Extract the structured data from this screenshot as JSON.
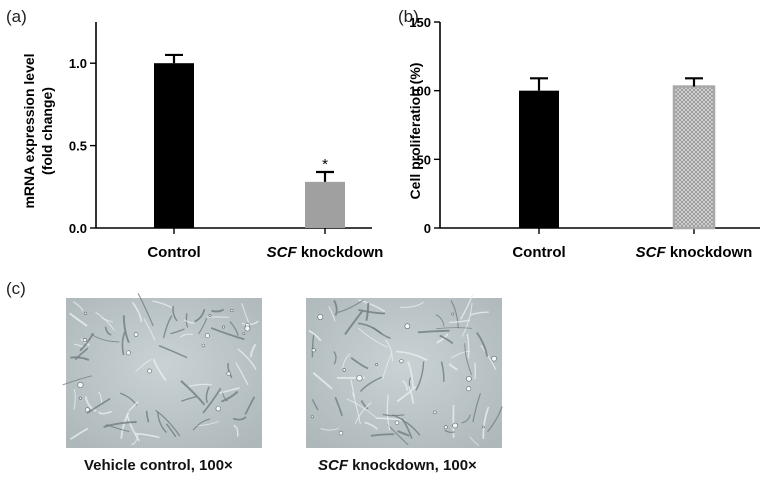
{
  "panels": {
    "a": {
      "label": "(a)"
    },
    "b": {
      "label": "(b)"
    },
    "c": {
      "label": "(c)"
    }
  },
  "chart_data": [
    {
      "type": "bar",
      "panel": "a",
      "categories": [
        "Control",
        "SCF knockdown"
      ],
      "category_italic_prefix": [
        "",
        "SCF"
      ],
      "category_rest": [
        "Control",
        " knockdown"
      ],
      "values": [
        1.0,
        0.28
      ],
      "errors": [
        0.05,
        0.06
      ],
      "significance": [
        "",
        "*"
      ],
      "ylabel_line1": "mRNA expression level",
      "ylabel_line2": "(fold change)",
      "ylim": [
        0,
        1.25
      ],
      "yticks": [
        0.0,
        0.5,
        1.0
      ],
      "ytick_labels": [
        "0.0",
        "0.5",
        "1.0"
      ],
      "bar_colors": [
        "#000000",
        "#a0a0a0"
      ],
      "bar_patterns": [
        "solid",
        "solid"
      ],
      "grid": false
    },
    {
      "type": "bar",
      "panel": "b",
      "categories": [
        "Control",
        "SCF knockdown"
      ],
      "category_italic_prefix": [
        "",
        "SCF"
      ],
      "category_rest": [
        "Control",
        " knockdown"
      ],
      "values": [
        100,
        103
      ],
      "errors": [
        9,
        6
      ],
      "significance": [
        "",
        ""
      ],
      "ylabel_line1": "Cell proliferation (%)",
      "ylim": [
        0,
        150
      ],
      "yticks": [
        0,
        50,
        100,
        150
      ],
      "ytick_labels": [
        "0",
        "50",
        "100",
        "150"
      ],
      "bar_colors": [
        "#000000",
        "#a8a8a8"
      ],
      "bar_patterns": [
        "solid",
        "crosshatch"
      ],
      "grid": false
    }
  ],
  "images": [
    {
      "caption_italic": "",
      "caption_rest": "Vehicle control, 100×",
      "icon": "phase-contrast-micrograph"
    },
    {
      "caption_italic": "SCF",
      "caption_rest": " knockdown, 100×",
      "icon": "phase-contrast-micrograph"
    }
  ]
}
